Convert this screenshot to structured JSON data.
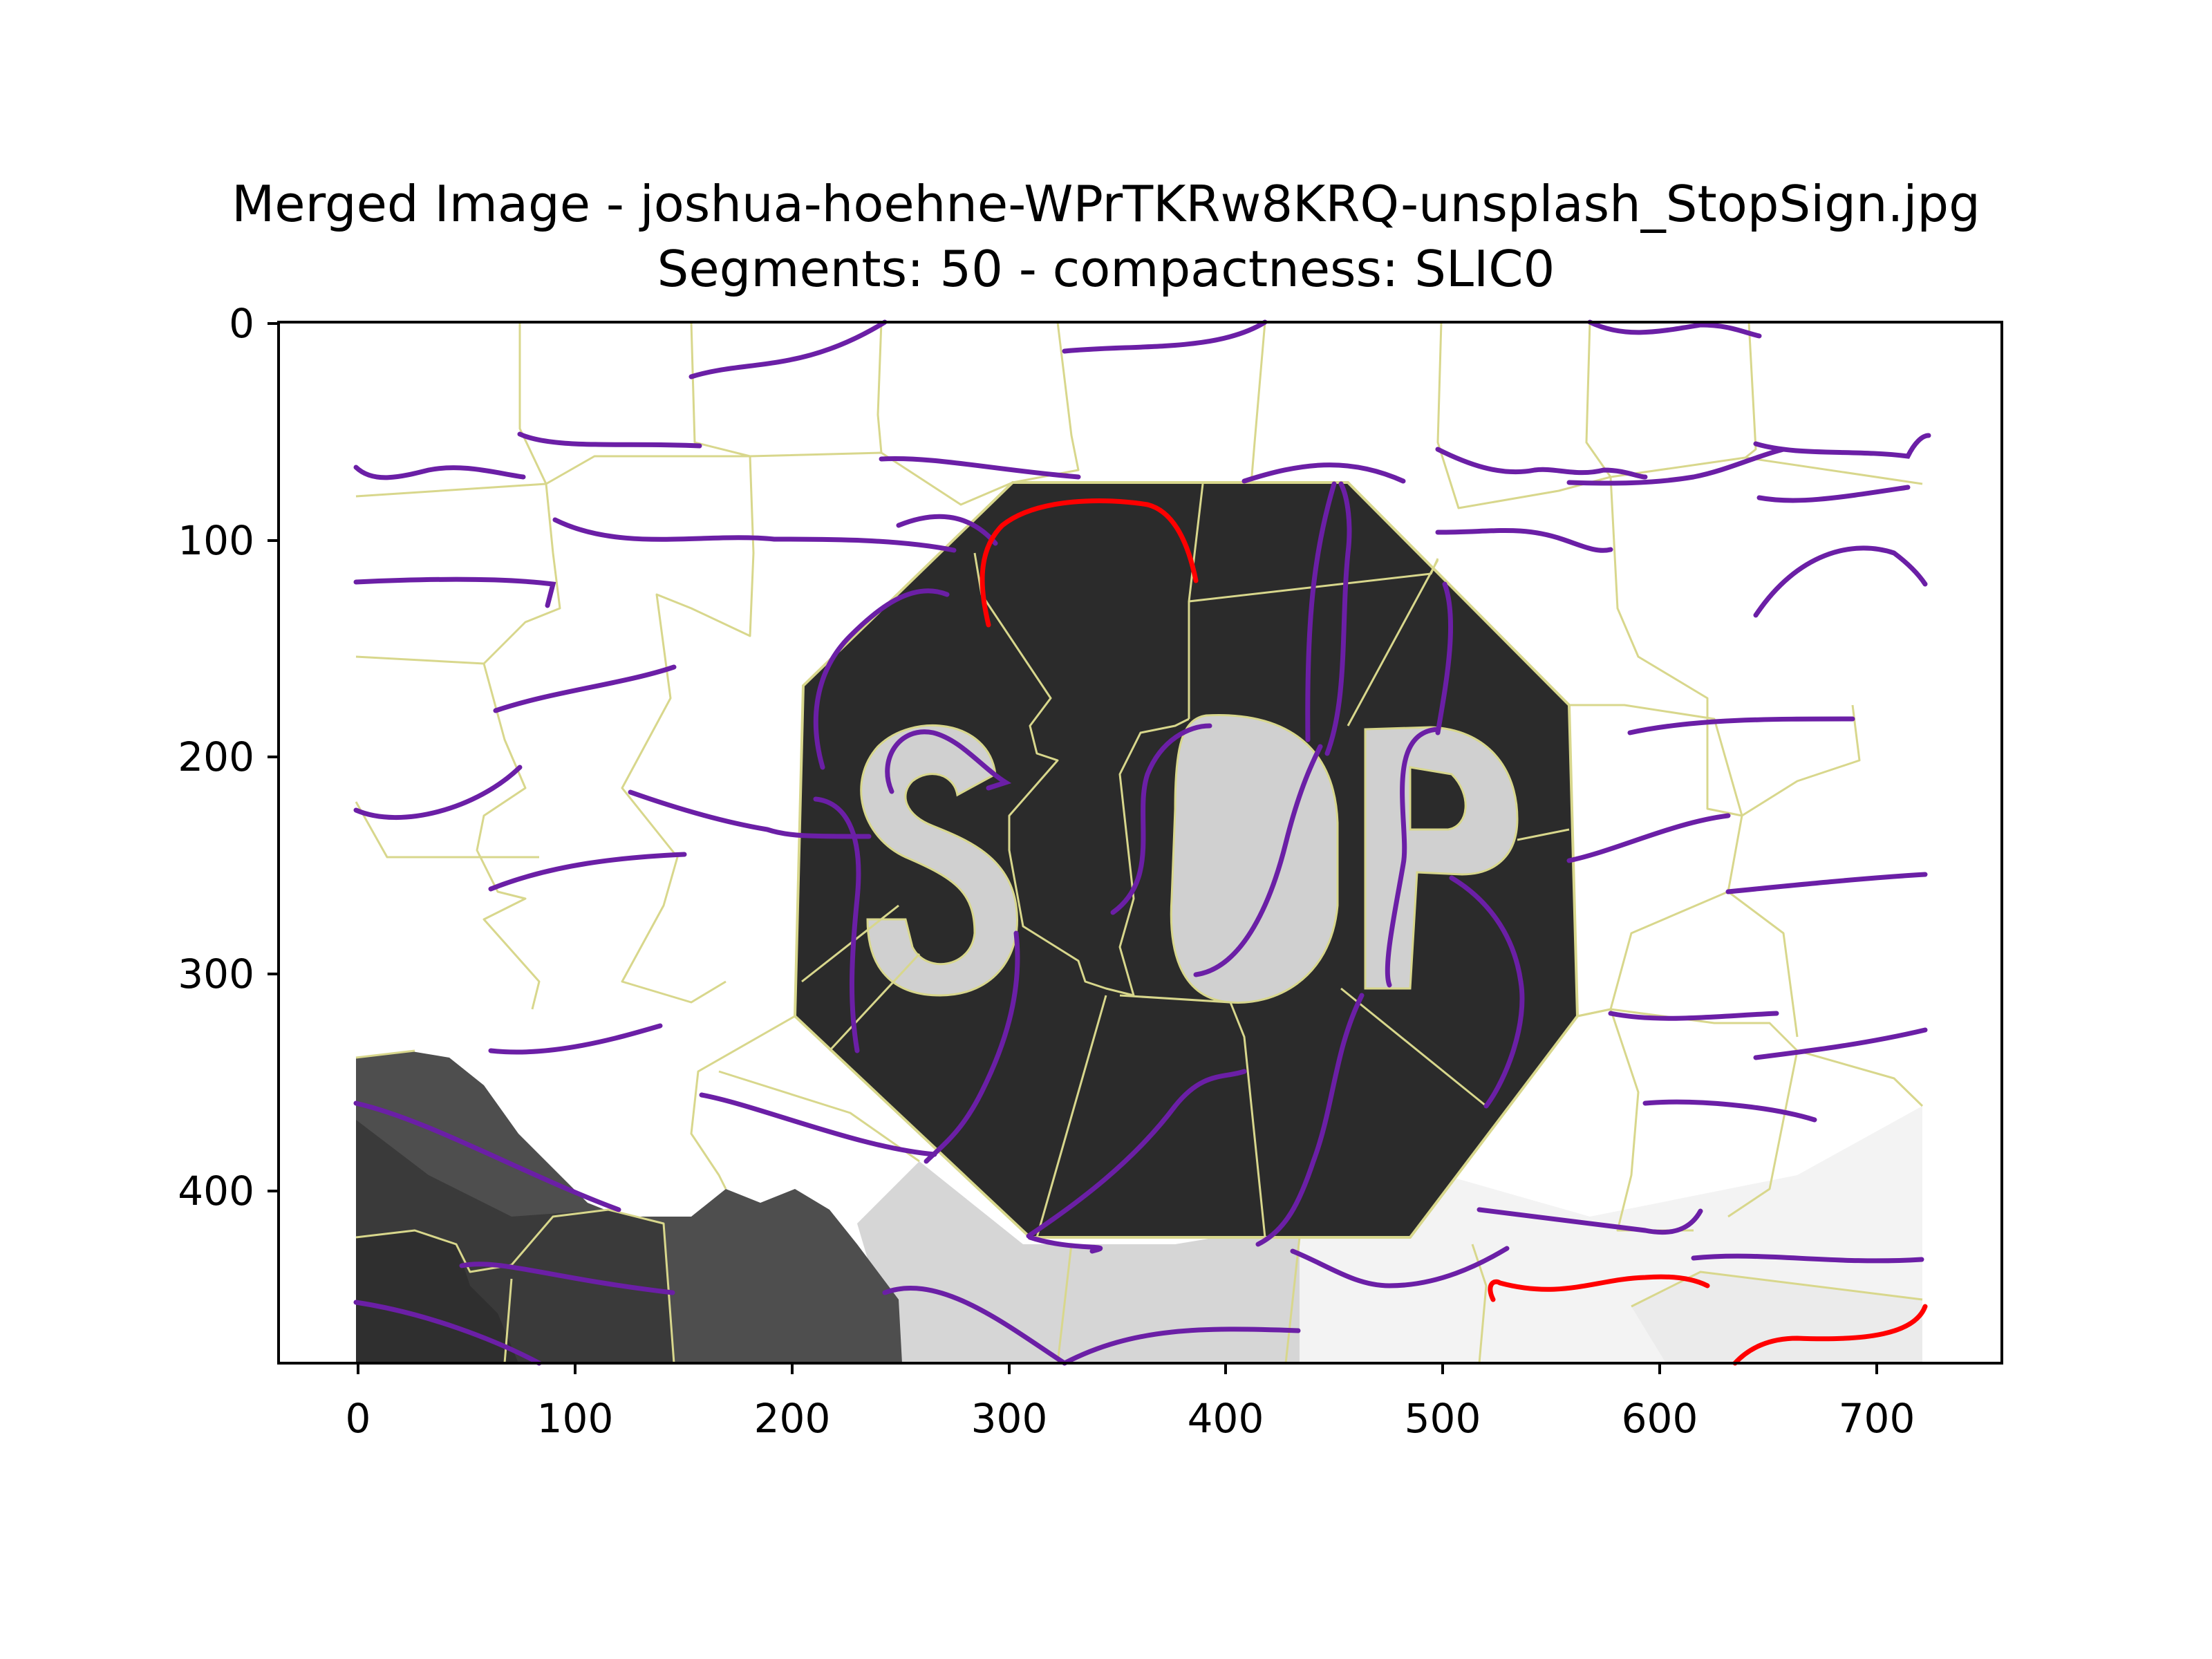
{
  "figure": {
    "title_line_1": "Merged Image - joshua-hoehne-WPrTKRw8KRQ-unsplash_StopSign.jpg",
    "title_line_2": "Segments: 50 - compactness: SLIC0",
    "x_ticks": [
      "0",
      "100",
      "200",
      "300",
      "400",
      "500",
      "600",
      "700"
    ],
    "y_ticks": [
      "0",
      "100",
      "200",
      "300",
      "400"
    ],
    "x_range": [
      -36,
      758
    ],
    "y_range": [
      480,
      0
    ]
  },
  "colors": {
    "boundary": "#d8d78c",
    "curve_purple": "#6b1fa6",
    "curve_red": "#ff0000",
    "sign_dark": "#2b2b2b",
    "letter_gray": "#d0d0d0",
    "rock_dark": "#3a3a3a",
    "rock_mid": "#4e4e4e",
    "ground_light": "#d6d6d6",
    "ground_pale": "#f3f3f3"
  }
}
